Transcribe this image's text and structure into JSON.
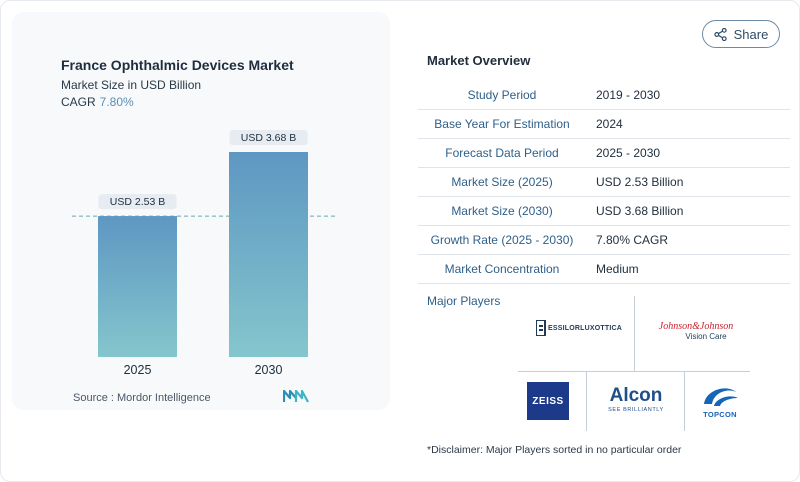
{
  "chart_card": {
    "title": "France Ophthalmic Devices Market",
    "subtitle": "Market Size in USD Billion",
    "cagr_label": "CAGR",
    "cagr_value": "7.80%",
    "source": "Source :  Mordor Intelligence"
  },
  "chart_data": {
    "type": "bar",
    "categories": [
      "2025",
      "2030"
    ],
    "values": [
      2.53,
      3.68
    ],
    "data_labels": [
      "USD 2.53 B",
      "USD 3.68 B"
    ],
    "title": "France Ophthalmic Devices Market",
    "subtitle": "Market Size in USD Billion",
    "ylim": [
      0,
      3.68
    ],
    "reference_line": 2.53,
    "grid": false
  },
  "share": {
    "label": "Share",
    "icon": "share-icon"
  },
  "overview": {
    "title": "Market Overview",
    "rows": [
      {
        "label": "Study Period",
        "value": "2019 - 2030"
      },
      {
        "label": "Base Year For Estimation",
        "value": "2024"
      },
      {
        "label": "Forecast Data Period",
        "value": "2025 - 2030"
      },
      {
        "label": "Market Size (2025)",
        "value": "USD 2.53 Billion"
      },
      {
        "label": "Market Size (2030)",
        "value": "USD 3.68 Billion"
      },
      {
        "label": "Growth Rate (2025 - 2030)",
        "value": "7.80% CAGR"
      },
      {
        "label": "Market Concentration",
        "value": "Medium"
      }
    ]
  },
  "players": {
    "title": "Major Players",
    "logos": [
      "EssilorLuxottica",
      "Johnson & Johnson Vision Care",
      "ZEISS",
      "Alcon",
      "TOPCON"
    ],
    "essilor_text": "ESSILORLUXOTTICA",
    "jj_text": "Johnson&Johnson",
    "jj_sub": "Vision Care",
    "zeiss_text": "ZEISS",
    "alcon_text": "Alcon",
    "alcon_tag": "SEE BRILLIANTLY",
    "topcon_text": "TOPCON"
  },
  "disclaimer": "*Disclaimer: Major Players sorted in no particular order",
  "colors": {
    "bar_top": "#5e97c2",
    "bar_bottom": "#84c6cd",
    "accent": "#2e5f89",
    "cagr": "#5a8fb8"
  }
}
